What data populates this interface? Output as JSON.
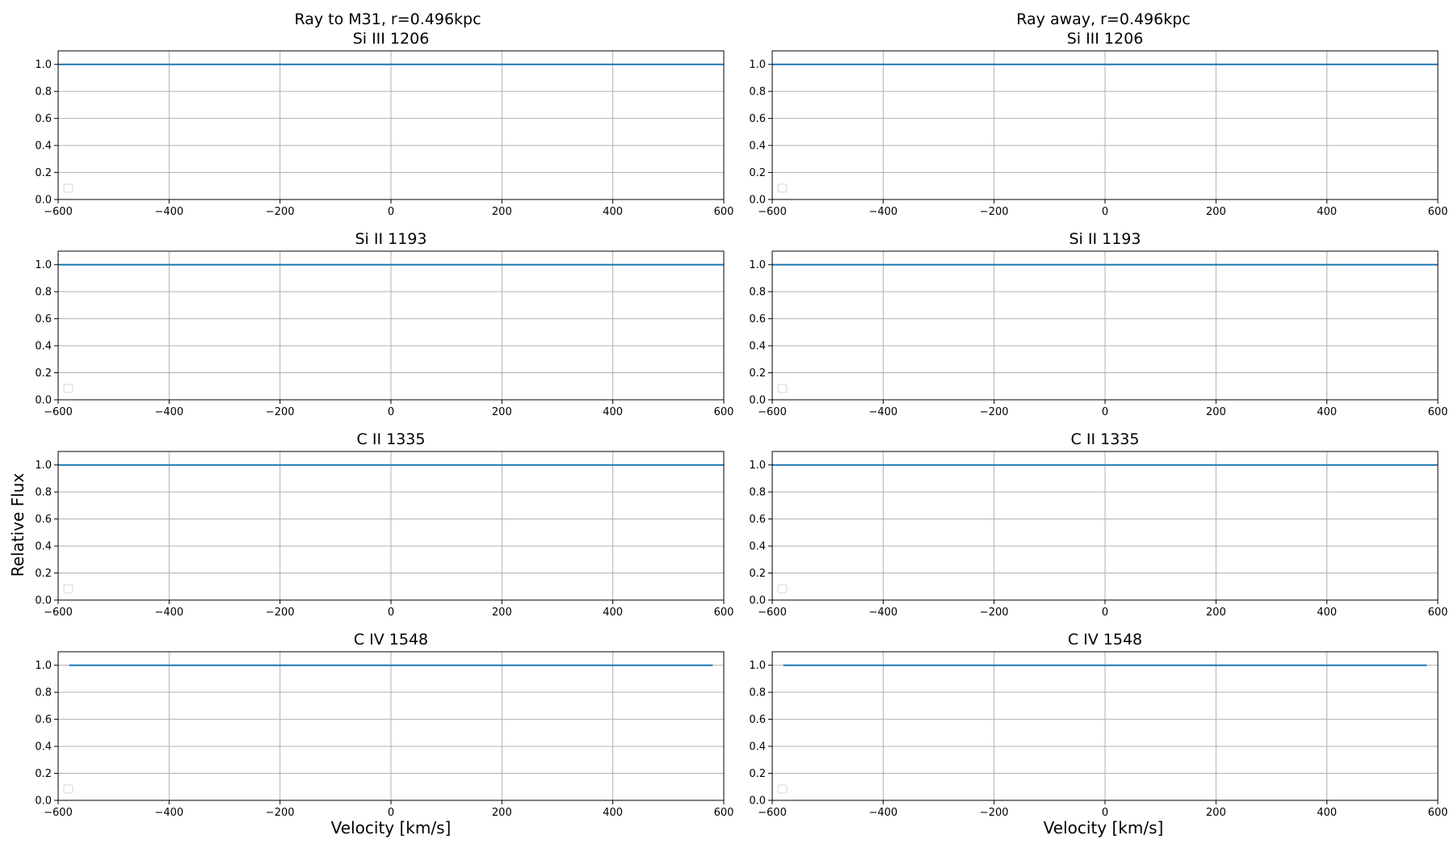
{
  "figure": {
    "ylabel": "Relative Flux",
    "xlabel": "Velocity [km/s]",
    "line_color": "#1f77b4",
    "grid_color": "#b0b0b0",
    "columns": [
      {
        "title": "Ray to M31, r=0.496kpc"
      },
      {
        "title": "Ray away, r=0.496kpc"
      }
    ]
  },
  "chart_data": [
    {
      "type": "line",
      "column": 0,
      "title": "Si III 1206",
      "xlim": [
        -600,
        600
      ],
      "ylim": [
        0,
        1.1
      ],
      "grid": true,
      "legend": "lower-left (empty)",
      "x": [
        -600,
        600
      ],
      "y": [
        1.0,
        1.0
      ],
      "xticks": [
        -600,
        -400,
        -200,
        0,
        200,
        400,
        600
      ],
      "yticks": [
        0.0,
        0.2,
        0.4,
        0.6,
        0.8,
        1.0
      ]
    },
    {
      "type": "line",
      "column": 1,
      "title": "Si III 1206",
      "xlim": [
        -600,
        600
      ],
      "ylim": [
        0,
        1.1
      ],
      "grid": true,
      "legend": "lower-left (empty)",
      "x": [
        -600,
        600
      ],
      "y": [
        1.0,
        1.0
      ],
      "xticks": [
        -600,
        -400,
        -200,
        0,
        200,
        400,
        600
      ],
      "yticks": [
        0.0,
        0.2,
        0.4,
        0.6,
        0.8,
        1.0
      ]
    },
    {
      "type": "line",
      "column": 0,
      "title": "Si II 1193",
      "xlim": [
        -600,
        600
      ],
      "ylim": [
        0,
        1.1
      ],
      "grid": true,
      "legend": "lower-left (empty)",
      "x": [
        -600,
        600
      ],
      "y": [
        1.0,
        1.0
      ],
      "xticks": [
        -600,
        -400,
        -200,
        0,
        200,
        400,
        600
      ],
      "yticks": [
        0.0,
        0.2,
        0.4,
        0.6,
        0.8,
        1.0
      ]
    },
    {
      "type": "line",
      "column": 1,
      "title": "Si II 1193",
      "xlim": [
        -600,
        600
      ],
      "ylim": [
        0,
        1.1
      ],
      "grid": true,
      "legend": "lower-left (empty)",
      "x": [
        -600,
        600
      ],
      "y": [
        1.0,
        1.0
      ],
      "xticks": [
        -600,
        -400,
        -200,
        0,
        200,
        400,
        600
      ],
      "yticks": [
        0.0,
        0.2,
        0.4,
        0.6,
        0.8,
        1.0
      ]
    },
    {
      "type": "line",
      "column": 0,
      "title": "C II 1335",
      "xlim": [
        -600,
        600
      ],
      "ylim": [
        0,
        1.1
      ],
      "grid": true,
      "legend": "lower-left (empty)",
      "x": [
        -600,
        600
      ],
      "y": [
        1.0,
        1.0
      ],
      "xticks": [
        -600,
        -400,
        -200,
        0,
        200,
        400,
        600
      ],
      "yticks": [
        0.0,
        0.2,
        0.4,
        0.6,
        0.8,
        1.0
      ]
    },
    {
      "type": "line",
      "column": 1,
      "title": "C II 1335",
      "xlim": [
        -600,
        600
      ],
      "ylim": [
        0,
        1.1
      ],
      "grid": true,
      "legend": "lower-left (empty)",
      "x": [
        -600,
        600
      ],
      "y": [
        1.0,
        1.0
      ],
      "xticks": [
        -600,
        -400,
        -200,
        0,
        200,
        400,
        600
      ],
      "yticks": [
        0.0,
        0.2,
        0.4,
        0.6,
        0.8,
        1.0
      ]
    },
    {
      "type": "line",
      "column": 0,
      "title": "C IV 1548",
      "xlim": [
        -600,
        600
      ],
      "ylim": [
        0,
        1.1
      ],
      "grid": true,
      "legend": "lower-left (empty)",
      "x": [
        -580,
        580
      ],
      "y": [
        1.0,
        1.0
      ],
      "xticks": [
        -600,
        -400,
        -200,
        0,
        200,
        400,
        600
      ],
      "yticks": [
        0.0,
        0.2,
        0.4,
        0.6,
        0.8,
        1.0
      ]
    },
    {
      "type": "line",
      "column": 1,
      "title": "C IV 1548",
      "xlim": [
        -600,
        600
      ],
      "ylim": [
        0,
        1.1
      ],
      "grid": true,
      "legend": "lower-left (empty)",
      "x": [
        -580,
        580
      ],
      "y": [
        1.0,
        1.0
      ],
      "xticks": [
        -600,
        -400,
        -200,
        0,
        200,
        400,
        600
      ],
      "yticks": [
        0.0,
        0.2,
        0.4,
        0.6,
        0.8,
        1.0
      ]
    }
  ]
}
